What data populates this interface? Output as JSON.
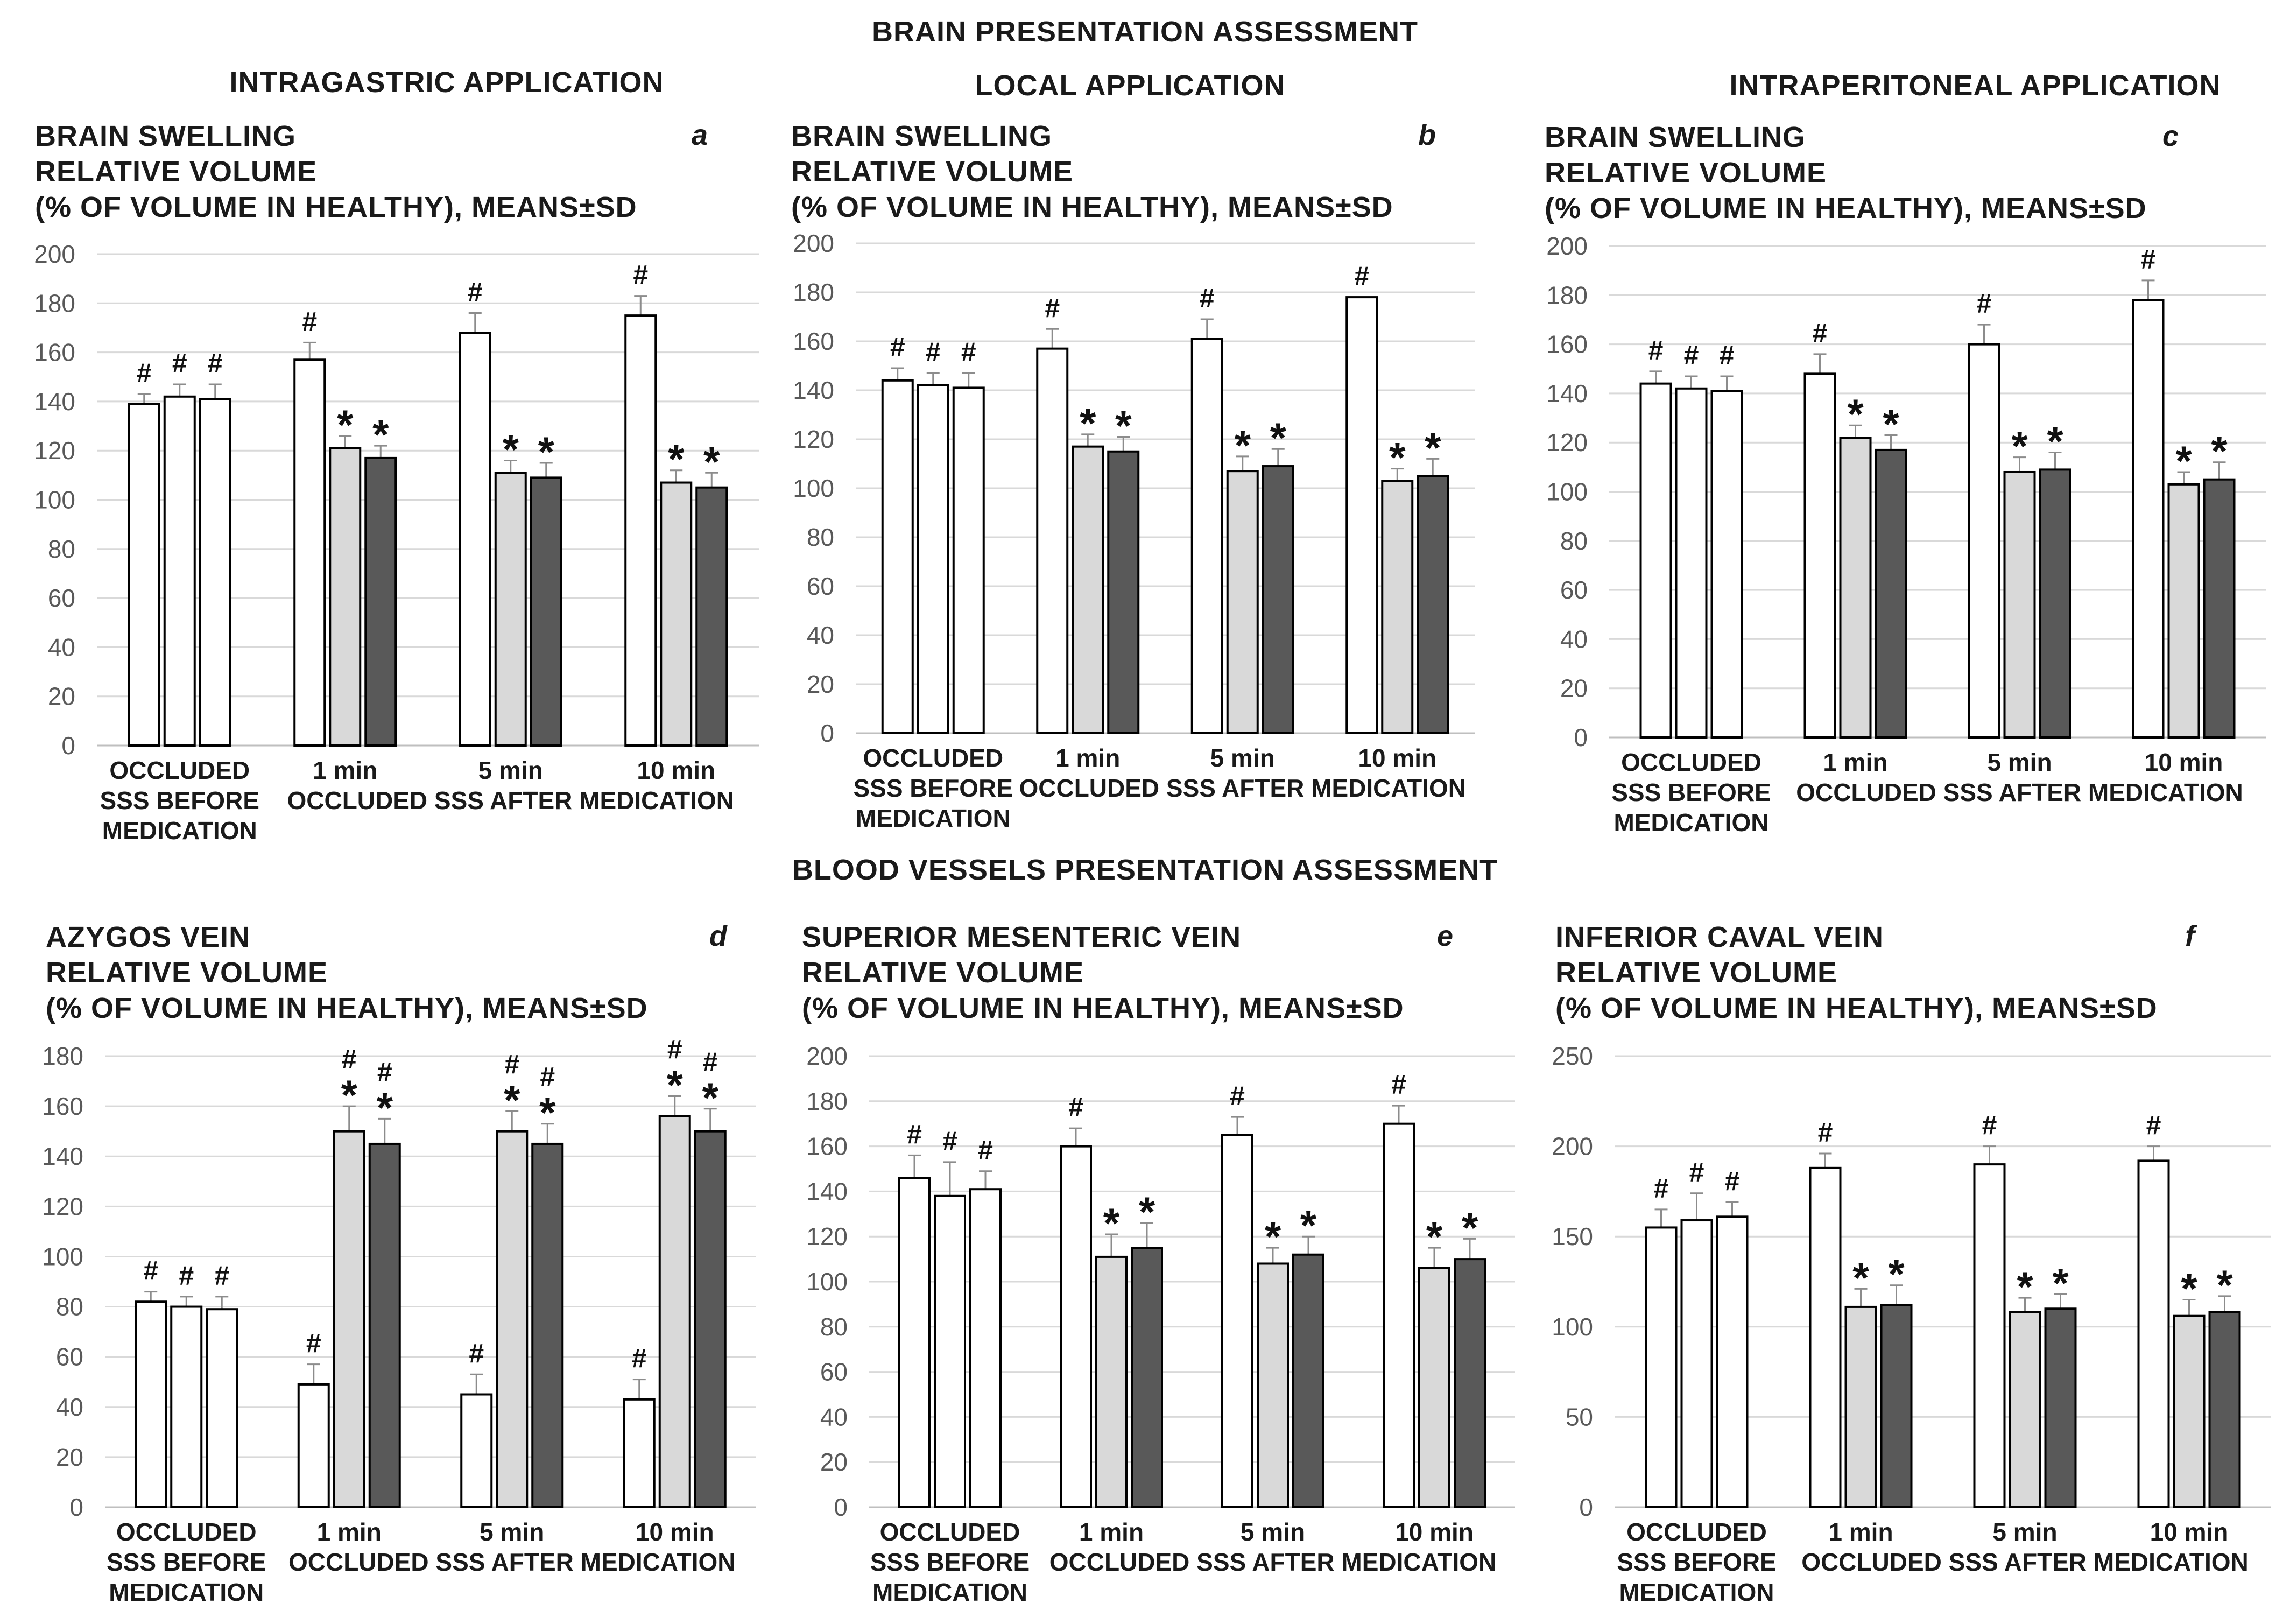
{
  "sections": {
    "brain": "BRAIN PRESENTATION ASSESSMENT",
    "vessels": "BLOOD VESSELS PRESENTATION ASSESSMENT"
  },
  "applications": [
    "INTRAGASTRIC APPLICATION",
    "LOCAL APPLICATION",
    "INTRAPERITONEAL APPLICATION"
  ],
  "colors": {
    "bar_white": "#ffffff",
    "bar_light": "#d9d9d9",
    "bar_dark": "#595959",
    "outline": "#000000",
    "gridline": "#d9d9d9",
    "axis_text": "#595959"
  },
  "chart_data": [
    {
      "type": "bar",
      "letter": "a",
      "title": [
        "BRAIN SWELLING",
        "RELATIVE VOLUME",
        "(% OF VOLUME IN HEALTHY), MEANS±SD"
      ],
      "ylim": [
        0,
        200
      ],
      "yticks": [
        0,
        20,
        40,
        60,
        80,
        100,
        120,
        140,
        160,
        180,
        200
      ],
      "groups": [
        {
          "label": [
            "OCCLUDED",
            "SSS BEFORE",
            "MEDICATION"
          ],
          "bars": [
            {
              "value": 139,
              "err": 4,
              "fill": "white",
              "marks": [
                "#"
              ]
            },
            {
              "value": 142,
              "err": 5,
              "fill": "white",
              "marks": [
                "#"
              ]
            },
            {
              "value": 141,
              "err": 6,
              "fill": "white",
              "marks": [
                "#"
              ]
            }
          ]
        },
        {
          "label": [
            "1 min"
          ],
          "bars": [
            {
              "value": 157,
              "err": 7,
              "fill": "white",
              "marks": [
                "#"
              ]
            },
            {
              "value": 121,
              "err": 5,
              "fill": "light",
              "marks": [
                "*"
              ]
            },
            {
              "value": 117,
              "err": 5,
              "fill": "dark",
              "marks": [
                "*"
              ]
            }
          ]
        },
        {
          "label": [
            "5 min"
          ],
          "bars": [
            {
              "value": 168,
              "err": 8,
              "fill": "white",
              "marks": [
                "#"
              ]
            },
            {
              "value": 111,
              "err": 5,
              "fill": "light",
              "marks": [
                "*"
              ]
            },
            {
              "value": 109,
              "err": 6,
              "fill": "dark",
              "marks": [
                "*"
              ]
            }
          ]
        },
        {
          "label": [
            "10 min"
          ],
          "bars": [
            {
              "value": 175,
              "err": 8,
              "fill": "white",
              "marks": [
                "#"
              ]
            },
            {
              "value": 107,
              "err": 5,
              "fill": "light",
              "marks": [
                "*"
              ]
            },
            {
              "value": 105,
              "err": 6,
              "fill": "dark",
              "marks": [
                "*"
              ]
            }
          ]
        }
      ],
      "xlabel": "OCCLUDED SSS AFTER MEDICATION"
    },
    {
      "type": "bar",
      "letter": "b",
      "title": [
        "BRAIN SWELLING",
        "RELATIVE VOLUME",
        "(% OF VOLUME IN HEALTHY), MEANS±SD"
      ],
      "ylim": [
        0,
        200
      ],
      "yticks": [
        0,
        20,
        40,
        60,
        80,
        100,
        120,
        140,
        160,
        180,
        200
      ],
      "groups": [
        {
          "label": [
            "OCCLUDED",
            "SSS BEFORE",
            "MEDICATION"
          ],
          "bars": [
            {
              "value": 144,
              "err": 5,
              "fill": "white",
              "marks": [
                "#"
              ]
            },
            {
              "value": 142,
              "err": 5,
              "fill": "white",
              "marks": [
                "#"
              ]
            },
            {
              "value": 141,
              "err": 6,
              "fill": "white",
              "marks": [
                "#"
              ]
            }
          ]
        },
        {
          "label": [
            "1 min"
          ],
          "bars": [
            {
              "value": 157,
              "err": 8,
              "fill": "white",
              "marks": [
                "#"
              ]
            },
            {
              "value": 117,
              "err": 5,
              "fill": "light",
              "marks": [
                "*"
              ]
            },
            {
              "value": 115,
              "err": 6,
              "fill": "dark",
              "marks": [
                "*"
              ]
            }
          ]
        },
        {
          "label": [
            "5 min"
          ],
          "bars": [
            {
              "value": 161,
              "err": 8,
              "fill": "white",
              "marks": [
                "#"
              ]
            },
            {
              "value": 107,
              "err": 6,
              "fill": "light",
              "marks": [
                "*"
              ]
            },
            {
              "value": 109,
              "err": 7,
              "fill": "dark",
              "marks": [
                "*"
              ]
            }
          ]
        },
        {
          "label": [
            "10 min"
          ],
          "bars": [
            {
              "value": 178,
              "err": 0,
              "fill": "white",
              "marks": [
                "#"
              ]
            },
            {
              "value": 103,
              "err": 5,
              "fill": "light",
              "marks": [
                "*"
              ]
            },
            {
              "value": 105,
              "err": 7,
              "fill": "dark",
              "marks": [
                "*"
              ]
            }
          ]
        }
      ],
      "xlabel": "OCCLUDED SSS AFTER MEDICATION"
    },
    {
      "type": "bar",
      "letter": "c",
      "title": [
        "BRAIN SWELLING",
        "RELATIVE VOLUME",
        "(% OF VOLUME IN HEALTHY), MEANS±SD"
      ],
      "ylim": [
        0,
        200
      ],
      "yticks": [
        0,
        20,
        40,
        60,
        80,
        100,
        120,
        140,
        160,
        180,
        200
      ],
      "groups": [
        {
          "label": [
            "OCCLUDED",
            "SSS BEFORE",
            "MEDICATION"
          ],
          "bars": [
            {
              "value": 144,
              "err": 5,
              "fill": "white",
              "marks": [
                "#"
              ]
            },
            {
              "value": 142,
              "err": 5,
              "fill": "white",
              "marks": [
                "#"
              ]
            },
            {
              "value": 141,
              "err": 6,
              "fill": "white",
              "marks": [
                "#"
              ]
            }
          ]
        },
        {
          "label": [
            "1 min"
          ],
          "bars": [
            {
              "value": 148,
              "err": 8,
              "fill": "white",
              "marks": [
                "#"
              ]
            },
            {
              "value": 122,
              "err": 5,
              "fill": "light",
              "marks": [
                "*"
              ]
            },
            {
              "value": 117,
              "err": 6,
              "fill": "dark",
              "marks": [
                "*"
              ]
            }
          ]
        },
        {
          "label": [
            "5 min"
          ],
          "bars": [
            {
              "value": 160,
              "err": 8,
              "fill": "white",
              "marks": [
                "#"
              ]
            },
            {
              "value": 108,
              "err": 6,
              "fill": "light",
              "marks": [
                "*"
              ]
            },
            {
              "value": 109,
              "err": 7,
              "fill": "dark",
              "marks": [
                "*"
              ]
            }
          ]
        },
        {
          "label": [
            "10 min"
          ],
          "bars": [
            {
              "value": 178,
              "err": 8,
              "fill": "white",
              "marks": [
                "#"
              ]
            },
            {
              "value": 103,
              "err": 5,
              "fill": "light",
              "marks": [
                "*"
              ]
            },
            {
              "value": 105,
              "err": 7,
              "fill": "dark",
              "marks": [
                "*"
              ]
            }
          ]
        }
      ],
      "xlabel": "OCCLUDED SSS AFTER MEDICATION"
    },
    {
      "type": "bar",
      "letter": "d",
      "title": [
        "AZYGOS VEIN",
        "RELATIVE VOLUME",
        "(% OF VOLUME IN HEALTHY), MEANS±SD"
      ],
      "ylim": [
        0,
        180
      ],
      "yticks": [
        0,
        20,
        40,
        60,
        80,
        100,
        120,
        140,
        160,
        180
      ],
      "groups": [
        {
          "label": [
            "OCCLUDED",
            "SSS BEFORE",
            "MEDICATION"
          ],
          "bars": [
            {
              "value": 82,
              "err": 4,
              "fill": "white",
              "marks": [
                "#"
              ]
            },
            {
              "value": 80,
              "err": 4,
              "fill": "white",
              "marks": [
                "#"
              ]
            },
            {
              "value": 79,
              "err": 5,
              "fill": "white",
              "marks": [
                "#"
              ]
            }
          ]
        },
        {
          "label": [
            "1 min"
          ],
          "bars": [
            {
              "value": 49,
              "err": 8,
              "fill": "white",
              "marks": [
                "#"
              ]
            },
            {
              "value": 150,
              "err": 10,
              "fill": "light",
              "marks": [
                "#",
                "*"
              ]
            },
            {
              "value": 145,
              "err": 10,
              "fill": "dark",
              "marks": [
                "#",
                "*"
              ]
            }
          ]
        },
        {
          "label": [
            "5 min"
          ],
          "bars": [
            {
              "value": 45,
              "err": 8,
              "fill": "white",
              "marks": [
                "#"
              ]
            },
            {
              "value": 150,
              "err": 8,
              "fill": "light",
              "marks": [
                "#",
                "*"
              ]
            },
            {
              "value": 145,
              "err": 8,
              "fill": "dark",
              "marks": [
                "#",
                "*"
              ]
            }
          ]
        },
        {
          "label": [
            "10 min"
          ],
          "bars": [
            {
              "value": 43,
              "err": 8,
              "fill": "white",
              "marks": [
                "#"
              ]
            },
            {
              "value": 156,
              "err": 8,
              "fill": "light",
              "marks": [
                "#",
                "*"
              ]
            },
            {
              "value": 150,
              "err": 9,
              "fill": "dark",
              "marks": [
                "#",
                "*"
              ]
            }
          ]
        }
      ],
      "xlabel": "OCCLUDED SSS AFTER MEDICATION"
    },
    {
      "type": "bar",
      "letter": "e",
      "title": [
        "SUPERIOR MESENTERIC VEIN",
        "RELATIVE VOLUME",
        "(% OF VOLUME IN HEALTHY), MEANS±SD"
      ],
      "ylim": [
        0,
        200
      ],
      "yticks": [
        0,
        20,
        40,
        60,
        80,
        100,
        120,
        140,
        160,
        180,
        200
      ],
      "groups": [
        {
          "label": [
            "OCCLUDED",
            "SSS BEFORE",
            "MEDICATION"
          ],
          "bars": [
            {
              "value": 146,
              "err": 10,
              "fill": "white",
              "marks": [
                "#"
              ]
            },
            {
              "value": 138,
              "err": 15,
              "fill": "white",
              "marks": [
                "#"
              ]
            },
            {
              "value": 141,
              "err": 8,
              "fill": "white",
              "marks": [
                "#"
              ]
            }
          ]
        },
        {
          "label": [
            "1 min"
          ],
          "bars": [
            {
              "value": 160,
              "err": 8,
              "fill": "white",
              "marks": [
                "#"
              ]
            },
            {
              "value": 111,
              "err": 10,
              "fill": "light",
              "marks": [
                "*"
              ]
            },
            {
              "value": 115,
              "err": 11,
              "fill": "dark",
              "marks": [
                "*"
              ]
            }
          ]
        },
        {
          "label": [
            "5 min"
          ],
          "bars": [
            {
              "value": 165,
              "err": 8,
              "fill": "white",
              "marks": [
                "#"
              ]
            },
            {
              "value": 108,
              "err": 7,
              "fill": "light",
              "marks": [
                "*"
              ]
            },
            {
              "value": 112,
              "err": 8,
              "fill": "dark",
              "marks": [
                "*"
              ]
            }
          ]
        },
        {
          "label": [
            "10 min"
          ],
          "bars": [
            {
              "value": 170,
              "err": 8,
              "fill": "white",
              "marks": [
                "#"
              ]
            },
            {
              "value": 106,
              "err": 9,
              "fill": "light",
              "marks": [
                "*"
              ]
            },
            {
              "value": 110,
              "err": 9,
              "fill": "dark",
              "marks": [
                "*"
              ]
            }
          ]
        }
      ],
      "xlabel": "OCCLUDED SSS AFTER MEDICATION"
    },
    {
      "type": "bar",
      "letter": "f",
      "title": [
        "INFERIOR CAVAL VEIN",
        "RELATIVE VOLUME",
        "(% OF VOLUME IN HEALTHY), MEANS±SD"
      ],
      "ylim": [
        0,
        250
      ],
      "yticks": [
        0,
        50,
        100,
        150,
        200,
        250
      ],
      "groups": [
        {
          "label": [
            "OCCLUDED",
            "SSS BEFORE",
            "MEDICATION"
          ],
          "bars": [
            {
              "value": 155,
              "err": 10,
              "fill": "white",
              "marks": [
                "#"
              ]
            },
            {
              "value": 159,
              "err": 15,
              "fill": "white",
              "marks": [
                "#"
              ]
            },
            {
              "value": 161,
              "err": 8,
              "fill": "white",
              "marks": [
                "#"
              ]
            }
          ]
        },
        {
          "label": [
            "1 min"
          ],
          "bars": [
            {
              "value": 188,
              "err": 8,
              "fill": "white",
              "marks": [
                "#"
              ]
            },
            {
              "value": 111,
              "err": 10,
              "fill": "light",
              "marks": [
                "*"
              ]
            },
            {
              "value": 112,
              "err": 11,
              "fill": "dark",
              "marks": [
                "*"
              ]
            }
          ]
        },
        {
          "label": [
            "5 min"
          ],
          "bars": [
            {
              "value": 190,
              "err": 10,
              "fill": "white",
              "marks": [
                "#"
              ]
            },
            {
              "value": 108,
              "err": 8,
              "fill": "light",
              "marks": [
                "*"
              ]
            },
            {
              "value": 110,
              "err": 8,
              "fill": "dark",
              "marks": [
                "*"
              ]
            }
          ]
        },
        {
          "label": [
            "10 min"
          ],
          "bars": [
            {
              "value": 192,
              "err": 8,
              "fill": "white",
              "marks": [
                "#"
              ]
            },
            {
              "value": 106,
              "err": 9,
              "fill": "light",
              "marks": [
                "*"
              ]
            },
            {
              "value": 108,
              "err": 9,
              "fill": "dark",
              "marks": [
                "*"
              ]
            }
          ]
        }
      ],
      "xlabel": "OCCLUDED SSS AFTER MEDICATION"
    }
  ]
}
